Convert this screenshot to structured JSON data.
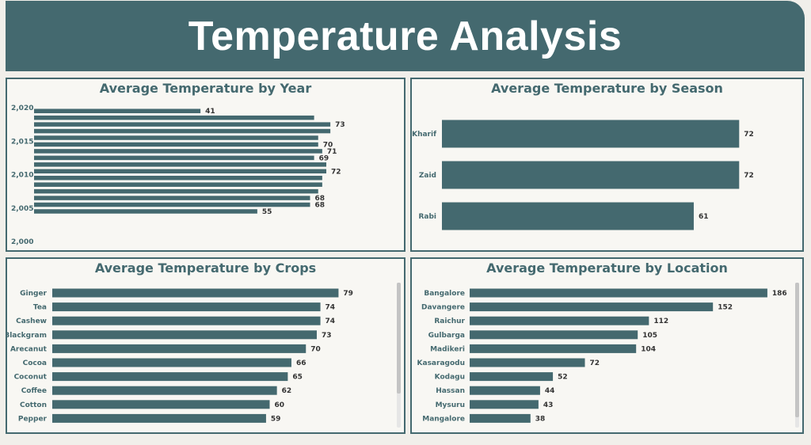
{
  "page": {
    "title": "Temperature Analysis"
  },
  "colors": {
    "bar": "#44696f",
    "header": "#44696f",
    "text": "#44696f"
  },
  "chart_data": [
    {
      "id": "year",
      "type": "bar",
      "orientation": "horizontal",
      "title": "Average Temperature by Year",
      "y_ticks": [
        "2,020",
        "2,015",
        "2,010",
        "2,005",
        "2,000"
      ],
      "y_range": [
        2000,
        2020
      ],
      "bars": [
        {
          "year": 2019,
          "value": 41,
          "label": "41"
        },
        {
          "year": 2018,
          "value": 69,
          "label": ""
        },
        {
          "year": 2017,
          "value": 73,
          "label": "73"
        },
        {
          "year": 2016,
          "value": 73,
          "label": ""
        },
        {
          "year": 2015,
          "value": 70,
          "label": ""
        },
        {
          "year": 2014,
          "value": 70,
          "label": "70"
        },
        {
          "year": 2013,
          "value": 71,
          "label": "71"
        },
        {
          "year": 2012,
          "value": 69,
          "label": "69"
        },
        {
          "year": 2011,
          "value": 72,
          "label": ""
        },
        {
          "year": 2010,
          "value": 72,
          "label": "72"
        },
        {
          "year": 2009,
          "value": 71,
          "label": ""
        },
        {
          "year": 2008,
          "value": 71,
          "label": ""
        },
        {
          "year": 2007,
          "value": 70,
          "label": ""
        },
        {
          "year": 2006,
          "value": 68,
          "label": "68"
        },
        {
          "year": 2005,
          "value": 68,
          "label": "68"
        },
        {
          "year": 2004,
          "value": 55,
          "label": "55"
        }
      ],
      "xlim": [
        0,
        80
      ]
    },
    {
      "id": "season",
      "type": "bar",
      "orientation": "horizontal",
      "title": "Average Temperature by Season",
      "categories": [
        "Kharif",
        "Zaid",
        "Rabi"
      ],
      "values": [
        72,
        72,
        61
      ],
      "xlim": [
        0,
        80
      ]
    },
    {
      "id": "crops",
      "type": "bar",
      "orientation": "horizontal",
      "title": "Average Temperature by Crops",
      "categories": [
        "Ginger",
        "Tea",
        "Cashew",
        "Blackgram",
        "Arecanut",
        "Cocoa",
        "Coconut",
        "Coffee",
        "Cotton",
        "Pepper"
      ],
      "values": [
        79,
        74,
        74,
        73,
        70,
        66,
        65,
        62,
        60,
        59
      ],
      "xlim": [
        0,
        80
      ]
    },
    {
      "id": "location",
      "type": "bar",
      "orientation": "horizontal",
      "title": "Average Temperature by Location",
      "categories": [
        "Bangalore",
        "Davangere",
        "Raichur",
        "Gulbarga",
        "Madikeri",
        "Kasaragodu",
        "Kodagu",
        "Hassan",
        "Mysuru",
        "Mangalore"
      ],
      "values": [
        186,
        152,
        112,
        105,
        104,
        72,
        52,
        44,
        43,
        38
      ],
      "xlim": [
        0,
        190
      ]
    }
  ]
}
